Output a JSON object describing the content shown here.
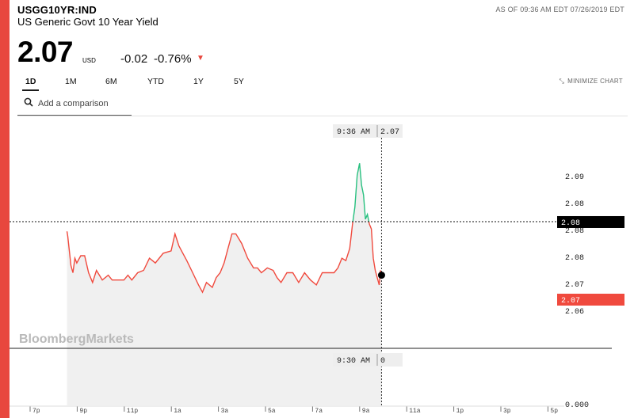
{
  "header": {
    "ticker": "USGG10YR:IND",
    "name": "US Generic Govt 10 Year Yield",
    "as_of": "AS OF 09:36 AM EDT 07/26/2019 EDT",
    "price": "2.07",
    "currency": "USD",
    "change": "-0.02",
    "change_pct": "-0.76%"
  },
  "tabs": [
    "1D",
    "1M",
    "6M",
    "YTD",
    "1Y",
    "5Y"
  ],
  "active_tab": "1D",
  "minimize_label": "MINIMIZE CHART",
  "search": {
    "placeholder": "Add a comparison"
  },
  "watermark": "BloombergMarkets",
  "tooltip_top": {
    "time": "9:36 AM",
    "value": "2.07"
  },
  "tooltip_bottom": {
    "time": "9:30 AM",
    "value": "0"
  },
  "colors": {
    "up": "#27c07f",
    "down": "#f04a3e",
    "accent": "#e8473e",
    "fill": "#f0f0f0"
  },
  "chart_data": {
    "type": "line",
    "title": "",
    "xlabel": "",
    "ylabel": "",
    "x_ticks": [
      "7p",
      "9p",
      "11p",
      "1a",
      "3a",
      "5a",
      "7a",
      "9a",
      "11a",
      "1p",
      "3p",
      "5p"
    ],
    "y_ticks": [
      "2.09",
      "2.08",
      "2.08",
      "2.08",
      "2.07",
      "2.06"
    ],
    "y_zero_label": "0.000",
    "current_label": "2.07",
    "crosshair_label": "2.08",
    "ylim": [
      2.058,
      2.092
    ],
    "reference_value": 2.0785,
    "series": [
      {
        "x": [
          "7/25 20:15",
          "7/25 20:17",
          "7/25 20:25",
          "7/25 20:30",
          "7/25 20:35",
          "7/25 20:40",
          "7/25 20:50",
          "7/25 21:00",
          "7/25 21:10",
          "7/25 21:20",
          "7/25 21:30",
          "7/25 21:45",
          "7/25 22:00",
          "7/25 22:10",
          "7/25 22:20",
          "7/25 22:30",
          "7/25 22:40",
          "7/25 22:50",
          "7/25 23:00",
          "7/25 23:15",
          "7/25 23:30",
          "7/25 23:45",
          "7/26 00:00",
          "7/26 00:20",
          "7/26 00:40",
          "7/26 00:50",
          "7/26 01:00",
          "7/26 01:10",
          "7/26 01:20",
          "7/26 01:35",
          "7/26 01:50",
          "7/26 02:00",
          "7/26 02:10",
          "7/26 02:25",
          "7/26 02:35",
          "7/26 02:45",
          "7/26 02:55",
          "7/26 03:05",
          "7/26 03:15",
          "7/26 03:25",
          "7/26 03:40",
          "7/26 03:55",
          "7/26 04:10",
          "7/26 04:20",
          "7/26 04:30",
          "7/26 04:45",
          "7/26 05:00",
          "7/26 05:10",
          "7/26 05:20",
          "7/26 05:35",
          "7/26 05:50",
          "7/26 06:05",
          "7/26 06:20",
          "7/26 06:35",
          "7/26 06:50",
          "7/26 07:05",
          "7/26 07:20",
          "7/26 07:35",
          "7/26 07:45",
          "7/26 07:55",
          "7/26 08:05",
          "7/26 08:15",
          "7/26 08:22",
          "7/26 08:28",
          "7/26 08:34",
          "7/26 08:40",
          "7/26 08:45",
          "7/26 08:50",
          "7/26 08:55",
          "7/26 09:00",
          "7/26 09:05",
          "7/26 09:10",
          "7/26 09:15",
          "7/26 09:20",
          "7/26 09:25",
          "7/26 09:30",
          "7/26 09:33",
          "7/26 09:36"
        ],
        "y": [
          2.0765,
          2.0755,
          2.0695,
          2.068,
          2.071,
          2.07,
          2.0715,
          2.0715,
          2.068,
          2.066,
          2.0685,
          2.0665,
          2.0675,
          2.0665,
          2.0665,
          2.0665,
          2.0665,
          2.0675,
          2.0665,
          2.068,
          2.0685,
          2.071,
          2.07,
          2.072,
          2.0725,
          2.076,
          2.0735,
          2.072,
          2.0705,
          2.068,
          2.0655,
          2.064,
          2.066,
          2.065,
          2.067,
          2.068,
          2.07,
          2.073,
          2.076,
          2.076,
          2.074,
          2.071,
          2.069,
          2.069,
          2.068,
          2.069,
          2.0685,
          2.067,
          2.066,
          2.068,
          2.068,
          2.066,
          2.068,
          2.0665,
          2.0655,
          2.068,
          2.068,
          2.068,
          2.069,
          2.071,
          2.0705,
          2.073,
          2.078,
          2.0815,
          2.088,
          2.0905,
          2.086,
          2.084,
          2.079,
          2.08,
          2.078,
          2.077,
          2.071,
          2.0685,
          2.067,
          2.0655,
          2.0685,
          2.0675
        ]
      }
    ]
  }
}
